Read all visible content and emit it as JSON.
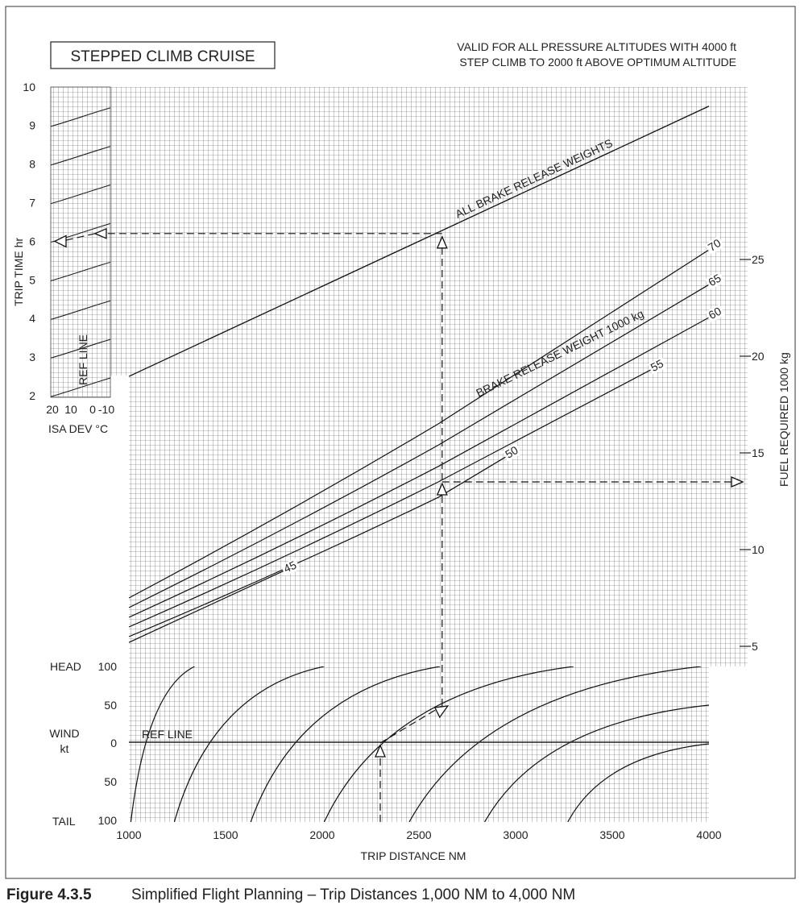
{
  "figure": {
    "number": "Figure 4.3.5",
    "caption": "Simplified Flight Planning – Trip Distances 1,000 NM to 4,000 NM"
  },
  "chart_data": {
    "type": "line",
    "title": "STEPPED CLIMB CRUISE",
    "notes": [
      "VALID FOR ALL PRESSURE ALTITUDES WITH 4000 ft",
      "STEP CLIMB TO 2000 ft ABOVE OPTIMUM ALTITUDE"
    ],
    "x_axis": {
      "label": "TRIP DISTANCE  NM",
      "range": [
        1000,
        4000
      ],
      "ticks": [
        "1000",
        "1500",
        "2000",
        "2500",
        "3000",
        "3500",
        "4000"
      ]
    },
    "trip_time_axis": {
      "label": "TRIP TIME  hr",
      "range": [
        2,
        10
      ],
      "ticks": [
        "2",
        "3",
        "4",
        "5",
        "6",
        "7",
        "8",
        "9",
        "10"
      ]
    },
    "fuel_axis": {
      "label": "FUEL REQUIRED  1000 kg",
      "ticks": [
        "5",
        "10",
        "15",
        "20",
        "25"
      ]
    },
    "isa_dev": {
      "label": "ISA DEV °C",
      "ticks": [
        "20",
        "10",
        "0",
        "-10"
      ],
      "ref_label": "REF LINE"
    },
    "wind": {
      "label_top": "HEAD",
      "label_mid_1": "WIND",
      "label_mid_2": "kt",
      "label_bottom": "TAIL",
      "ticks": [
        "100",
        "50",
        "0",
        "50",
        "100"
      ],
      "ref_label": "REF LINE"
    },
    "trip_time_line": {
      "label": "ALL BRAKE RELEASE WEIGHTS",
      "x": [
        1000,
        4000
      ],
      "y_hr": [
        2.5,
        9.5
      ]
    },
    "fuel_series_label": "BRAKE RELEASE WEIGHT  1000 kg",
    "fuel_series": [
      {
        "name": "70",
        "x": [
          1000,
          2600,
          4000
        ],
        "fuel": [
          7.5,
          16.5,
          25.5
        ]
      },
      {
        "name": "65",
        "x": [
          1000,
          2600,
          4000
        ],
        "fuel": [
          7.0,
          15.4,
          23.7
        ]
      },
      {
        "name": "60",
        "x": [
          1000,
          2600,
          4000
        ],
        "fuel": [
          6.5,
          14.3,
          22.0
        ]
      },
      {
        "name": "55",
        "x": [
          1000,
          2600,
          3700
        ],
        "fuel": [
          6.0,
          13.5,
          19.3
        ]
      },
      {
        "name": "50",
        "x": [
          1000,
          2600,
          2950
        ],
        "fuel": [
          5.5,
          12.7,
          14.8
        ]
      },
      {
        "name": "45",
        "x": [
          1000,
          1800
        ],
        "fuel": [
          5.2,
          8.9
        ]
      }
    ],
    "example": {
      "trip_distance_nm": 2300,
      "wind_kt": "50 head",
      "corrected_distance_nm": 2620,
      "fuel_required_1000kg": 13.5,
      "trip_time_hr": 6.2,
      "trip_time_isa_corrected_hr": 6.0
    }
  }
}
